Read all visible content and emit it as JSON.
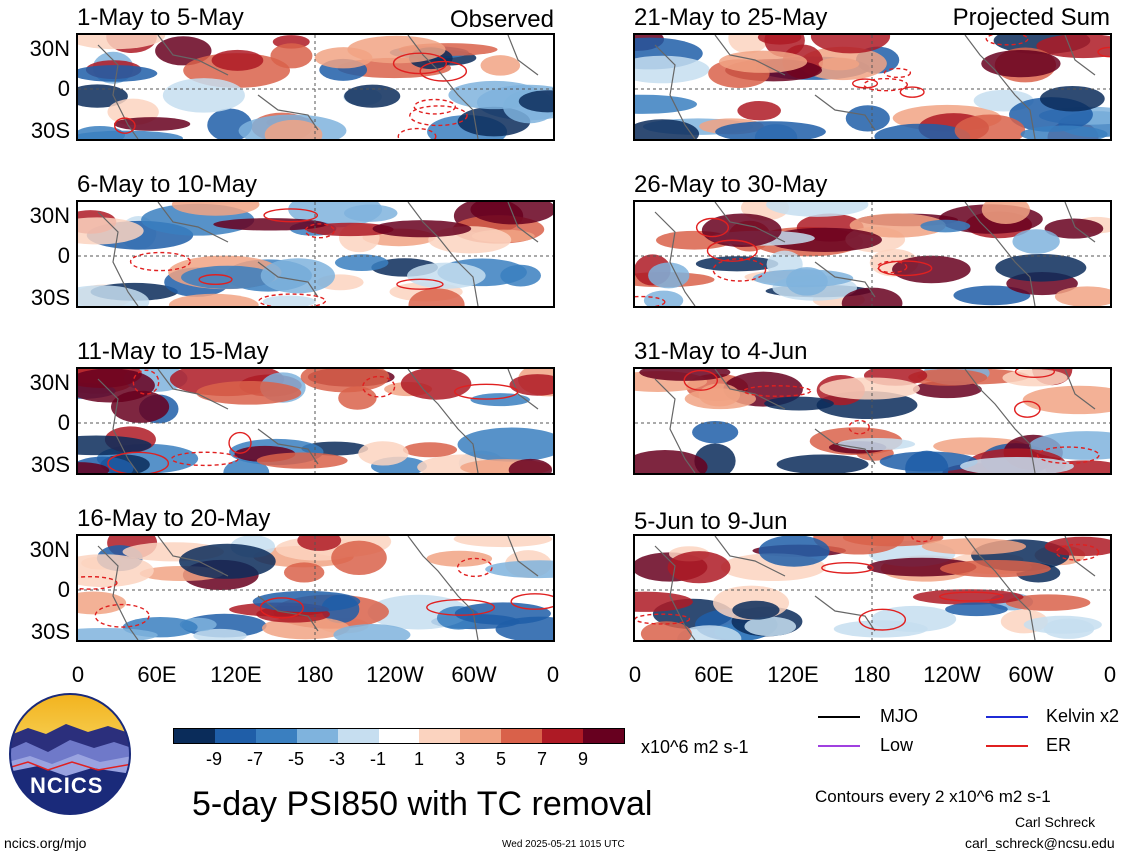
{
  "header": {
    "left_tag": "Observed",
    "right_tag": "Projected Sum"
  },
  "panels": [
    {
      "title": "1-May to 5-May"
    },
    {
      "title": "6-May to 10-May"
    },
    {
      "title": "11-May to 15-May"
    },
    {
      "title": "16-May to 20-May"
    },
    {
      "title": "21-May to 25-May"
    },
    {
      "title": "26-May to 30-May"
    },
    {
      "title": "31-May to 4-Jun"
    },
    {
      "title": "5-Jun to 9-Jun"
    }
  ],
  "axes": {
    "lat_labels": [
      "30N",
      "0",
      "30S"
    ],
    "lon_labels": [
      "0",
      "60E",
      "120E",
      "180",
      "120W",
      "60W",
      "0"
    ]
  },
  "colorbar": {
    "labels": [
      "-9",
      "-7",
      "-5",
      "-3",
      "-1",
      "1",
      "3",
      "5",
      "7",
      "9"
    ],
    "units": "x10^6 m2 s-1",
    "colors": [
      "#0a2c5a",
      "#1f5ea8",
      "#3a7fc0",
      "#7fb3dd",
      "#c6def0",
      "#ffffff",
      "#fbd3bf",
      "#f1a384",
      "#d9614a",
      "#ae1a25",
      "#67001f"
    ]
  },
  "legend": {
    "items": [
      {
        "label": "MJO",
        "color": "#000000"
      },
      {
        "label": "Kelvin x2",
        "color": "#1f2bd6"
      },
      {
        "label": "Low",
        "color": "#a040e0"
      },
      {
        "label": "ER",
        "color": "#e02020"
      }
    ],
    "contours_note": "Contours every 2 x10^6 m2 s-1"
  },
  "footer": {
    "main_title": "5-day PSI850 with TC removal",
    "logo_text": "NCICS",
    "website": "ncics.org/mjo",
    "timestamp": "Wed 2025-05-21 1015 UTC",
    "author": "Carl Schreck",
    "email": "carl_schreck@ncsu.edu"
  }
}
